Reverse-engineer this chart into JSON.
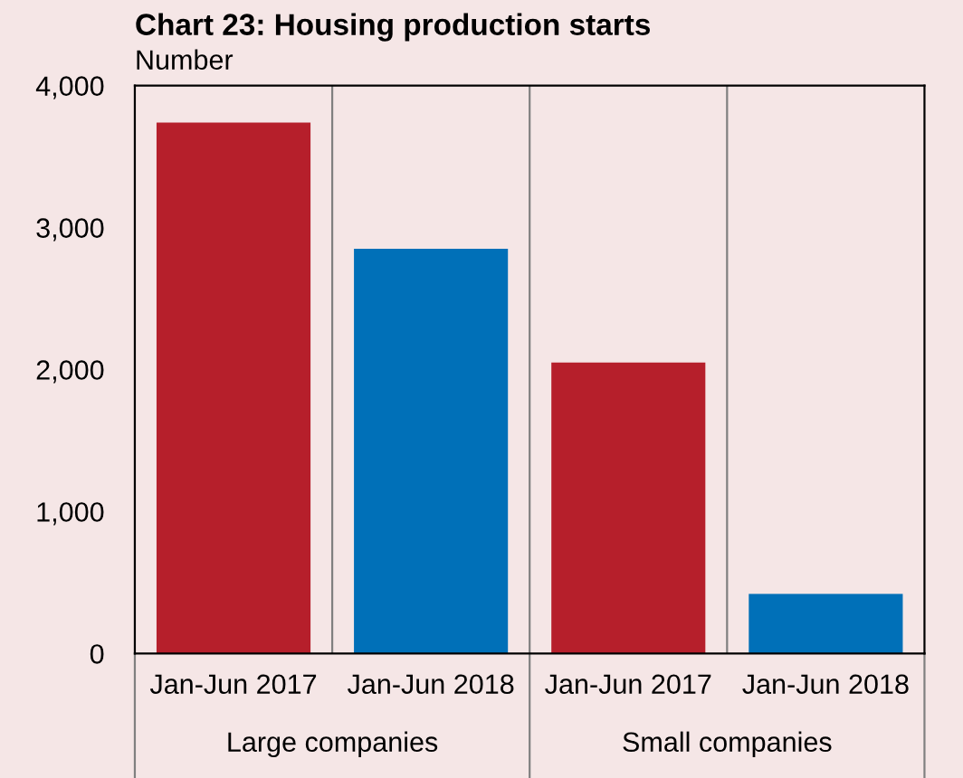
{
  "chart_data": {
    "type": "bar",
    "title": "Chart 23: Housing production starts",
    "ylabel": "Number",
    "categories": [
      "Jan-Jun 2017",
      "Jan-Jun 2018",
      "Jan-Jun 2017",
      "Jan-Jun 2018"
    ],
    "values": [
      3740,
      2850,
      2050,
      420
    ],
    "colors": [
      "#b61f2b",
      "#0070b8",
      "#b61f2b",
      "#0070b8"
    ],
    "annotations": [
      "Large companies",
      "Small companies"
    ],
    "ylim": [
      0,
      4000
    ],
    "yticks": [
      {
        "value": 0,
        "label": "0"
      },
      {
        "value": 1000,
        "label": "1,000"
      },
      {
        "value": 2000,
        "label": "2,000"
      },
      {
        "value": 3000,
        "label": "3,000"
      },
      {
        "value": 4000,
        "label": "4,000"
      }
    ]
  }
}
